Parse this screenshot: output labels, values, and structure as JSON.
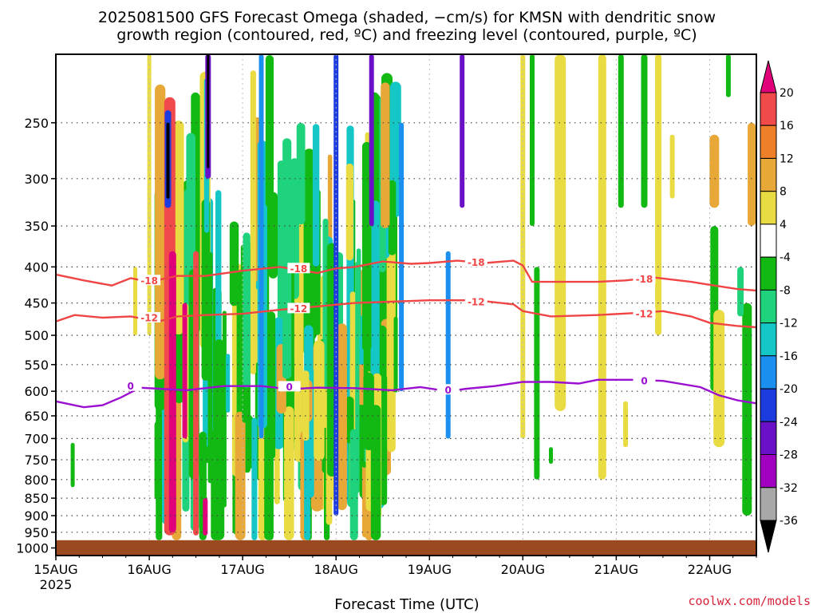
{
  "chart_data": {
    "type": "heatmap",
    "title_lines": [
      "2025081500 GFS Forecast Omega (shaded, −cm/s) for KMSN with dendritic snow",
      "growth region (contoured, red, ºC) and freezing level (contoured, purple, ºC)"
    ],
    "xlabel": "Forecast Time (UTC)",
    "credit": "coolwx.com/models",
    "x_ticks": [
      {
        "day": 0,
        "label": "15AUG",
        "sub": "2025"
      },
      {
        "day": 1,
        "label": "16AUG"
      },
      {
        "day": 2,
        "label": "17AUG"
      },
      {
        "day": 3,
        "label": "18AUG"
      },
      {
        "day": 4,
        "label": "19AUG"
      },
      {
        "day": 5,
        "label": "20AUG"
      },
      {
        "day": 6,
        "label": "21AUG"
      },
      {
        "day": 7,
        "label": "22AUG"
      }
    ],
    "x_range_days": [
      0,
      7.5
    ],
    "y_ticks": [
      "250",
      "300",
      "350",
      "400",
      "450",
      "500",
      "550",
      "600",
      "650",
      "700",
      "750",
      "800",
      "850",
      "900",
      "950",
      "1000"
    ],
    "y_tick_values": [
      250,
      300,
      350,
      400,
      450,
      500,
      550,
      600,
      650,
      700,
      750,
      800,
      850,
      900,
      950,
      1000
    ],
    "ylim_hpa": [
      200,
      1025
    ],
    "y_scale": "log",
    "colorbar": {
      "labels": [
        "20",
        "16",
        "12",
        "8",
        "4",
        "-4",
        "-8",
        "-12",
        "-16",
        "-20",
        "-24",
        "-28",
        "-32",
        "-36"
      ],
      "colors": [
        "#e0007a",
        "#f04a4a",
        "#f07f2a",
        "#e8a838",
        "#e9dc42",
        "#ffffff",
        "#13b913",
        "#1fd27c",
        "#14c6c6",
        "#1a8ff0",
        "#1c3ce0",
        "#6a10c8",
        "#a000c0",
        "#a8a8a8",
        "#000000"
      ]
    },
    "surface_color": "#9a4a1e",
    "contours": [
      {
        "label": "-18",
        "color": "#f04545",
        "points": [
          [
            0,
            410
          ],
          [
            0.3,
            418
          ],
          [
            0.6,
            425
          ],
          [
            0.8,
            415
          ],
          [
            1.0,
            420
          ],
          [
            1.3,
            412
          ],
          [
            1.6,
            412
          ],
          [
            2.0,
            405
          ],
          [
            2.4,
            400
          ],
          [
            2.8,
            408
          ],
          [
            3.0,
            402
          ],
          [
            3.2,
            400
          ],
          [
            3.5,
            393
          ],
          [
            3.8,
            396
          ],
          [
            4.0,
            395
          ],
          [
            4.3,
            392
          ],
          [
            4.6,
            395
          ],
          [
            4.9,
            392
          ],
          [
            5.0,
            398
          ],
          [
            5.1,
            420
          ],
          [
            5.4,
            420
          ],
          [
            5.8,
            420
          ],
          [
            6.1,
            418
          ],
          [
            6.4,
            414
          ],
          [
            6.8,
            420
          ],
          [
            7.0,
            424
          ],
          [
            7.3,
            430
          ],
          [
            7.5,
            432
          ]
        ],
        "labels_at": [
          [
            1.0,
            418
          ],
          [
            2.6,
            402
          ],
          [
            4.5,
            394
          ],
          [
            6.3,
            416
          ]
        ]
      },
      {
        "label": "-12",
        "color": "#f04545",
        "points": [
          [
            0,
            478
          ],
          [
            0.2,
            468
          ],
          [
            0.5,
            472
          ],
          [
            0.8,
            470
          ],
          [
            1.1,
            478
          ],
          [
            1.3,
            470
          ],
          [
            1.6,
            468
          ],
          [
            2.0,
            466
          ],
          [
            2.4,
            460
          ],
          [
            2.8,
            455
          ],
          [
            3.2,
            450
          ],
          [
            3.6,
            448
          ],
          [
            4.0,
            446
          ],
          [
            4.5,
            446
          ],
          [
            4.9,
            452
          ],
          [
            5.0,
            462
          ],
          [
            5.3,
            470
          ],
          [
            5.8,
            468
          ],
          [
            6.2,
            465
          ],
          [
            6.5,
            462
          ],
          [
            6.8,
            470
          ],
          [
            7.0,
            480
          ],
          [
            7.3,
            485
          ],
          [
            7.5,
            487
          ]
        ],
        "labels_at": [
          [
            1.0,
            472
          ],
          [
            2.6,
            458
          ],
          [
            4.5,
            448
          ],
          [
            6.3,
            466
          ]
        ]
      },
      {
        "label": "0",
        "color": "#9a0fd0",
        "points": [
          [
            0,
            620
          ],
          [
            0.3,
            632
          ],
          [
            0.5,
            628
          ],
          [
            0.7,
            612
          ],
          [
            0.9,
            593
          ],
          [
            1.1,
            595
          ],
          [
            1.4,
            598
          ],
          [
            1.8,
            590
          ],
          [
            2.2,
            590
          ],
          [
            2.5,
            596
          ],
          [
            2.8,
            593
          ],
          [
            3.2,
            594
          ],
          [
            3.6,
            598
          ],
          [
            3.9,
            592
          ],
          [
            4.2,
            600
          ],
          [
            4.4,
            595
          ],
          [
            4.7,
            590
          ],
          [
            5.0,
            582
          ],
          [
            5.3,
            582
          ],
          [
            5.6,
            585
          ],
          [
            5.8,
            578
          ],
          [
            6.2,
            578
          ],
          [
            6.5,
            580
          ],
          [
            6.9,
            592
          ],
          [
            7.1,
            608
          ],
          [
            7.3,
            618
          ],
          [
            7.5,
            624
          ]
        ],
        "labels_at": [
          [
            0.8,
            590
          ],
          [
            2.5,
            591
          ],
          [
            4.2,
            597
          ],
          [
            6.3,
            580
          ]
        ]
      }
    ]
  }
}
